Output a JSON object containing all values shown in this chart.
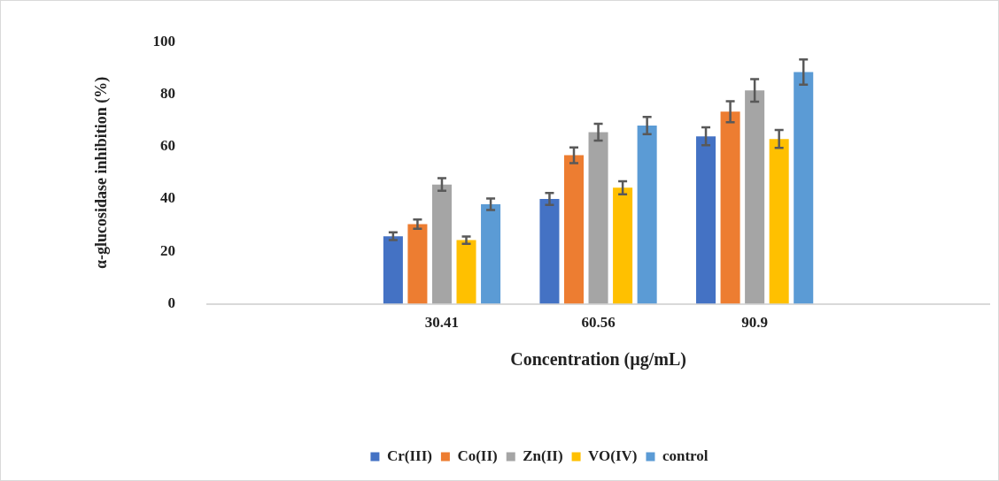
{
  "chart_data": {
    "type": "bar",
    "xlabel": "Concentration (µg/mL)",
    "ylabel": "α-glucosidase inhibition (%)",
    "categories": [
      null,
      "30.41",
      "60.56",
      "90.9",
      null
    ],
    "series": [
      {
        "name": "Cr(III)",
        "color": "#4472c4",
        "values": [
          null,
          25.8,
          40.0,
          63.9,
          null
        ],
        "errors": [
          null,
          1.5,
          2.3,
          3.4,
          null
        ]
      },
      {
        "name": "Co(II)",
        "color": "#ed7d31",
        "values": [
          null,
          30.4,
          56.7,
          73.3,
          null
        ],
        "errors": [
          null,
          1.8,
          3.0,
          4.0,
          null
        ]
      },
      {
        "name": "Zn(II)",
        "color": "#a5a5a5",
        "values": [
          null,
          45.5,
          65.5,
          81.4,
          null
        ],
        "errors": [
          null,
          2.4,
          3.2,
          4.3,
          null
        ]
      },
      {
        "name": "VO(IV)",
        "color": "#ffc000",
        "values": [
          null,
          24.3,
          44.3,
          62.9,
          null
        ],
        "errors": [
          null,
          1.4,
          2.5,
          3.4,
          null
        ]
      },
      {
        "name": "control",
        "color": "#5b9bd5",
        "values": [
          null,
          38.0,
          68.0,
          88.4,
          null
        ],
        "errors": [
          null,
          2.2,
          3.3,
          4.8,
          null
        ]
      }
    ],
    "ylim": [
      0,
      100
    ],
    "yticks": [
      0,
      20,
      40,
      60,
      80,
      100
    ],
    "grid": false,
    "legend": "bottom"
  }
}
